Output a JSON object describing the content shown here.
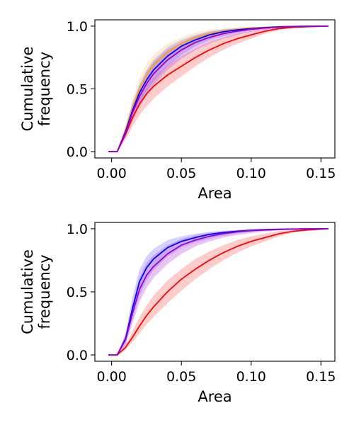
{
  "chart_data": [
    {
      "type": "line",
      "xlabel": "Area",
      "ylabel": "Cumulative frequency",
      "xlim": [
        -0.012,
        0.16
      ],
      "ylim": [
        -0.05,
        1.05
      ],
      "xticks": [
        0.0,
        0.05,
        0.1,
        0.15
      ],
      "xtick_labels": [
        "0.00",
        "0.05",
        "0.10",
        "0.15"
      ],
      "yticks": [
        0.0,
        0.5,
        1.0
      ],
      "ytick_labels": [
        "0.0",
        "0.5",
        "1.0"
      ],
      "grid": false,
      "x": [
        -0.002,
        0.004,
        0.01,
        0.015,
        0.02,
        0.025,
        0.03,
        0.04,
        0.05,
        0.06,
        0.07,
        0.08,
        0.09,
        0.1,
        0.11,
        0.12,
        0.13,
        0.14,
        0.155
      ],
      "series": [
        {
          "color": "#ff0000",
          "band_color": "#ff8080",
          "band_opacity": 0.4,
          "values": [
            0.0,
            0.0,
            0.14,
            0.27,
            0.38,
            0.46,
            0.52,
            0.61,
            0.68,
            0.75,
            0.81,
            0.86,
            0.9,
            0.93,
            0.96,
            0.98,
            0.99,
            0.995,
            1.0
          ],
          "lower": [
            0.0,
            0.0,
            0.1,
            0.2,
            0.29,
            0.36,
            0.42,
            0.52,
            0.6,
            0.68,
            0.75,
            0.81,
            0.86,
            0.9,
            0.94,
            0.97,
            0.985,
            0.992,
            1.0
          ],
          "upper": [
            0.0,
            0.0,
            0.18,
            0.33,
            0.45,
            0.53,
            0.59,
            0.69,
            0.76,
            0.82,
            0.87,
            0.91,
            0.94,
            0.96,
            0.98,
            0.99,
            0.995,
            0.998,
            1.0
          ]
        },
        {
          "color": "#ffa500",
          "band_color": "#ffc87a",
          "band_opacity": 0.35,
          "values": [
            0.0,
            0.0,
            0.17,
            0.35,
            0.5,
            0.61,
            0.69,
            0.79,
            0.86,
            0.91,
            0.94,
            0.96,
            0.975,
            0.985,
            0.99,
            0.995,
            0.998,
            0.999,
            1.0
          ],
          "lower": [
            0.0,
            0.0,
            0.13,
            0.29,
            0.42,
            0.52,
            0.6,
            0.71,
            0.8,
            0.86,
            0.9,
            0.93,
            0.955,
            0.97,
            0.98,
            0.99,
            0.995,
            0.998,
            1.0
          ],
          "upper": [
            0.0,
            0.0,
            0.21,
            0.41,
            0.58,
            0.7,
            0.77,
            0.86,
            0.91,
            0.95,
            0.97,
            0.98,
            0.99,
            0.995,
            0.997,
            0.999,
            1.0,
            1.0,
            1.0
          ]
        },
        {
          "color": "#0000ff",
          "band_color": "#8080ff",
          "band_opacity": 0.35,
          "values": [
            0.0,
            0.0,
            0.16,
            0.33,
            0.47,
            0.57,
            0.65,
            0.76,
            0.84,
            0.89,
            0.93,
            0.955,
            0.97,
            0.98,
            0.988,
            0.994,
            0.997,
            0.999,
            1.0
          ],
          "lower": [
            0.0,
            0.0,
            0.12,
            0.27,
            0.39,
            0.48,
            0.56,
            0.68,
            0.77,
            0.84,
            0.89,
            0.92,
            0.945,
            0.965,
            0.978,
            0.988,
            0.994,
            0.997,
            1.0
          ],
          "upper": [
            0.0,
            0.0,
            0.2,
            0.39,
            0.54,
            0.65,
            0.73,
            0.83,
            0.89,
            0.93,
            0.96,
            0.975,
            0.985,
            0.99,
            0.995,
            0.997,
            0.999,
            1.0,
            1.0
          ]
        },
        {
          "color": "#9900cc",
          "band_color": "#bb55dd",
          "band_opacity": 0.35,
          "values": [
            0.0,
            0.0,
            0.15,
            0.31,
            0.44,
            0.54,
            0.62,
            0.73,
            0.81,
            0.87,
            0.91,
            0.94,
            0.96,
            0.975,
            0.985,
            0.992,
            0.996,
            0.998,
            1.0
          ],
          "lower": [
            0.0,
            0.0,
            0.11,
            0.25,
            0.36,
            0.45,
            0.53,
            0.65,
            0.74,
            0.81,
            0.86,
            0.9,
            0.93,
            0.955,
            0.972,
            0.984,
            0.991,
            0.996,
            1.0
          ],
          "upper": [
            0.0,
            0.0,
            0.19,
            0.37,
            0.52,
            0.63,
            0.71,
            0.81,
            0.87,
            0.92,
            0.95,
            0.97,
            0.98,
            0.988,
            0.993,
            0.996,
            0.998,
            0.999,
            1.0
          ]
        }
      ]
    },
    {
      "type": "line",
      "xlabel": "Area",
      "ylabel": "Cumulative frequency",
      "xlim": [
        -0.012,
        0.16
      ],
      "ylim": [
        -0.05,
        1.05
      ],
      "xticks": [
        0.0,
        0.05,
        0.1,
        0.15
      ],
      "xtick_labels": [
        "0.00",
        "0.05",
        "0.10",
        "0.15"
      ],
      "yticks": [
        0.0,
        0.5,
        1.0
      ],
      "ytick_labels": [
        "0.0",
        "0.5",
        "1.0"
      ],
      "grid": false,
      "x": [
        -0.002,
        0.004,
        0.01,
        0.015,
        0.02,
        0.025,
        0.03,
        0.04,
        0.05,
        0.06,
        0.07,
        0.08,
        0.09,
        0.1,
        0.11,
        0.12,
        0.13,
        0.14,
        0.155
      ],
      "series": [
        {
          "color": "#ff0000",
          "band_color": "#ff8080",
          "band_opacity": 0.4,
          "values": [
            0.0,
            0.0,
            0.06,
            0.14,
            0.23,
            0.31,
            0.38,
            0.5,
            0.6,
            0.68,
            0.75,
            0.81,
            0.86,
            0.9,
            0.93,
            0.96,
            0.98,
            0.99,
            1.0
          ],
          "lower": [
            0.0,
            0.0,
            0.04,
            0.1,
            0.17,
            0.24,
            0.3,
            0.41,
            0.51,
            0.6,
            0.68,
            0.75,
            0.81,
            0.86,
            0.9,
            0.94,
            0.97,
            0.985,
            1.0
          ],
          "upper": [
            0.0,
            0.0,
            0.08,
            0.19,
            0.3,
            0.39,
            0.47,
            0.59,
            0.68,
            0.76,
            0.82,
            0.87,
            0.91,
            0.94,
            0.96,
            0.98,
            0.99,
            0.995,
            1.0
          ]
        },
        {
          "color": "#0000ff",
          "band_color": "#8080ff",
          "band_opacity": 0.35,
          "values": [
            0.0,
            0.0,
            0.13,
            0.37,
            0.58,
            0.69,
            0.76,
            0.85,
            0.9,
            0.93,
            0.955,
            0.97,
            0.98,
            0.988,
            0.993,
            0.996,
            0.998,
            0.999,
            1.0
          ],
          "lower": [
            0.0,
            0.0,
            0.09,
            0.28,
            0.47,
            0.59,
            0.67,
            0.78,
            0.85,
            0.89,
            0.92,
            0.945,
            0.962,
            0.975,
            0.985,
            0.991,
            0.995,
            0.998,
            1.0
          ],
          "upper": [
            0.0,
            0.0,
            0.17,
            0.46,
            0.68,
            0.78,
            0.84,
            0.91,
            0.94,
            0.96,
            0.975,
            0.985,
            0.99,
            0.995,
            0.997,
            0.999,
            1.0,
            1.0,
            1.0
          ]
        },
        {
          "color": "#9900cc",
          "band_color": "#bb55dd",
          "band_opacity": 0.35,
          "values": [
            0.0,
            0.0,
            0.12,
            0.33,
            0.52,
            0.63,
            0.7,
            0.8,
            0.87,
            0.91,
            0.94,
            0.96,
            0.975,
            0.985,
            0.99,
            0.994,
            0.997,
            0.999,
            1.0
          ],
          "lower": [
            0.0,
            0.0,
            0.08,
            0.25,
            0.42,
            0.53,
            0.61,
            0.72,
            0.8,
            0.86,
            0.9,
            0.93,
            0.95,
            0.965,
            0.978,
            0.987,
            0.993,
            0.997,
            1.0
          ],
          "upper": [
            0.0,
            0.0,
            0.16,
            0.41,
            0.62,
            0.73,
            0.79,
            0.87,
            0.92,
            0.95,
            0.97,
            0.98,
            0.988,
            0.993,
            0.996,
            0.998,
            0.999,
            1.0,
            1.0
          ]
        }
      ]
    }
  ]
}
